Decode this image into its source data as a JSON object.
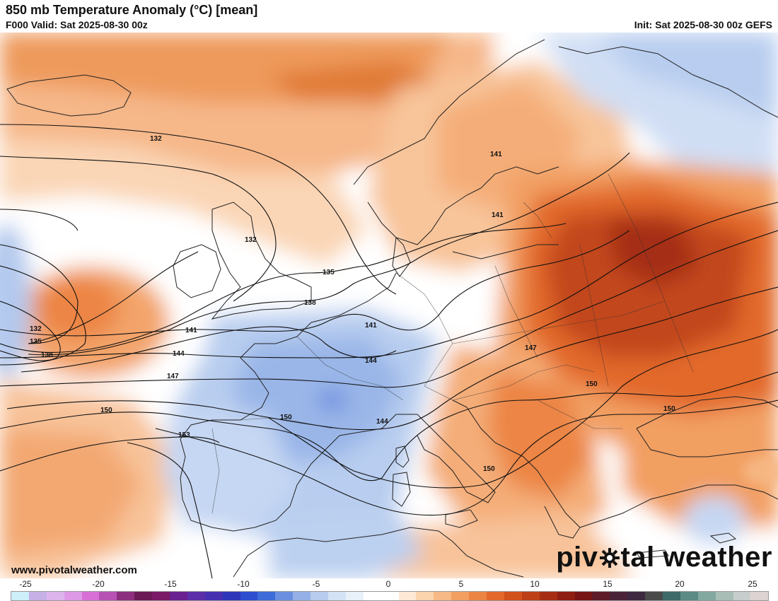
{
  "header": {
    "title": "850 mb Temperature Anomaly (°C) [mean]",
    "valid": "F000 Valid: Sat 2025-08-30 00z",
    "init": "Init: Sat 2025-08-30 00z GEFS"
  },
  "footer": {
    "website": "www.pivotalweather.com",
    "logo_left": "piv",
    "logo_right": "tal weather"
  },
  "contour_labels": [
    "132",
    "132",
    "132",
    "135",
    "135",
    "138",
    "138",
    "141",
    "141",
    "141",
    "141",
    "144",
    "144",
    "144",
    "147",
    "147",
    "150",
    "150",
    "150",
    "150",
    "150",
    "153"
  ],
  "colorbar": {
    "ticks": [
      "-25",
      "-20",
      "-15",
      "-10",
      "-5",
      "0",
      "5",
      "10",
      "15",
      "20",
      "25"
    ],
    "colors": [
      "#cdeffa",
      "#c6b0e6",
      "#ddb5ec",
      "#dd99e6",
      "#d86fd6",
      "#b752b5",
      "#8c2f7e",
      "#6b1a55",
      "#7b1a67",
      "#6a2090",
      "#5c2ea8",
      "#4630b0",
      "#2f35b8",
      "#2e4ed0",
      "#3d6bd8",
      "#6a8fe0",
      "#94b0e6",
      "#b7ccee",
      "#d4e2f5",
      "#e8f0fa",
      "#ffffff",
      "#ffffff",
      "#fde9d6",
      "#fbd3ad",
      "#f7b986",
      "#f29f62",
      "#ec8544",
      "#e2692b",
      "#d2521d",
      "#bd3f17",
      "#a52e12",
      "#8e1d12",
      "#761315",
      "#5e1a28",
      "#4a2238",
      "#3d2840",
      "#4a4a4a",
      "#3e6a6a",
      "#5c8a84",
      "#82a8a0",
      "#a8bdb6",
      "#c7cdcc",
      "#ddd3d3"
    ]
  },
  "map_bg": "#ffffff"
}
